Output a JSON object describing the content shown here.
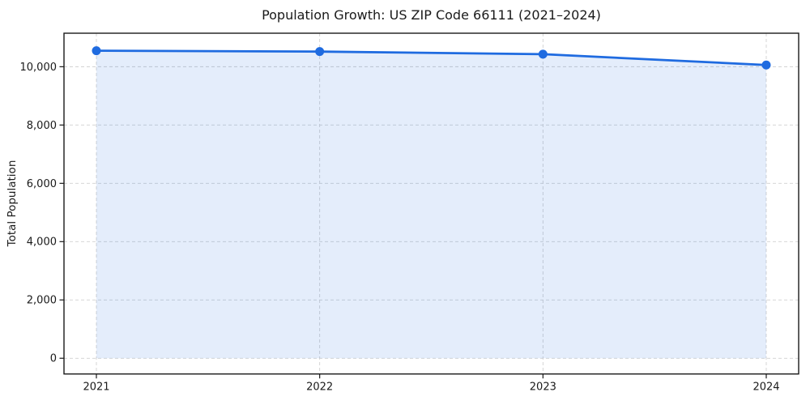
{
  "chart_data": {
    "type": "line",
    "title": "Population Growth: US ZIP Code 66111 (2021–2024)",
    "xlabel": "",
    "ylabel": "Total Population",
    "categories": [
      "2021",
      "2022",
      "2023",
      "2024"
    ],
    "series": [
      {
        "name": "Total Population",
        "values": [
          10550,
          10520,
          10430,
          10060
        ]
      }
    ],
    "ylim": [
      -540,
      11150
    ],
    "yticks": [
      {
        "value": 0,
        "label": "0"
      },
      {
        "value": 2000,
        "label": "2,000"
      },
      {
        "value": 4000,
        "label": "4,000"
      },
      {
        "value": 6000,
        "label": "6,000"
      },
      {
        "value": 8000,
        "label": "8,000"
      },
      {
        "value": 10000,
        "label": "10,000"
      }
    ],
    "grid": "dashed-both",
    "legend_position": "none",
    "area_fill": true,
    "colors": {
      "line": "#1f6be0",
      "marker": "#1f6be0",
      "area": "rgba(31,107,224,0.12)",
      "grid": "#d0d0d0",
      "axis": "#1a1a1a",
      "tick_text": "#1a1a1a",
      "background": "#ffffff"
    }
  }
}
